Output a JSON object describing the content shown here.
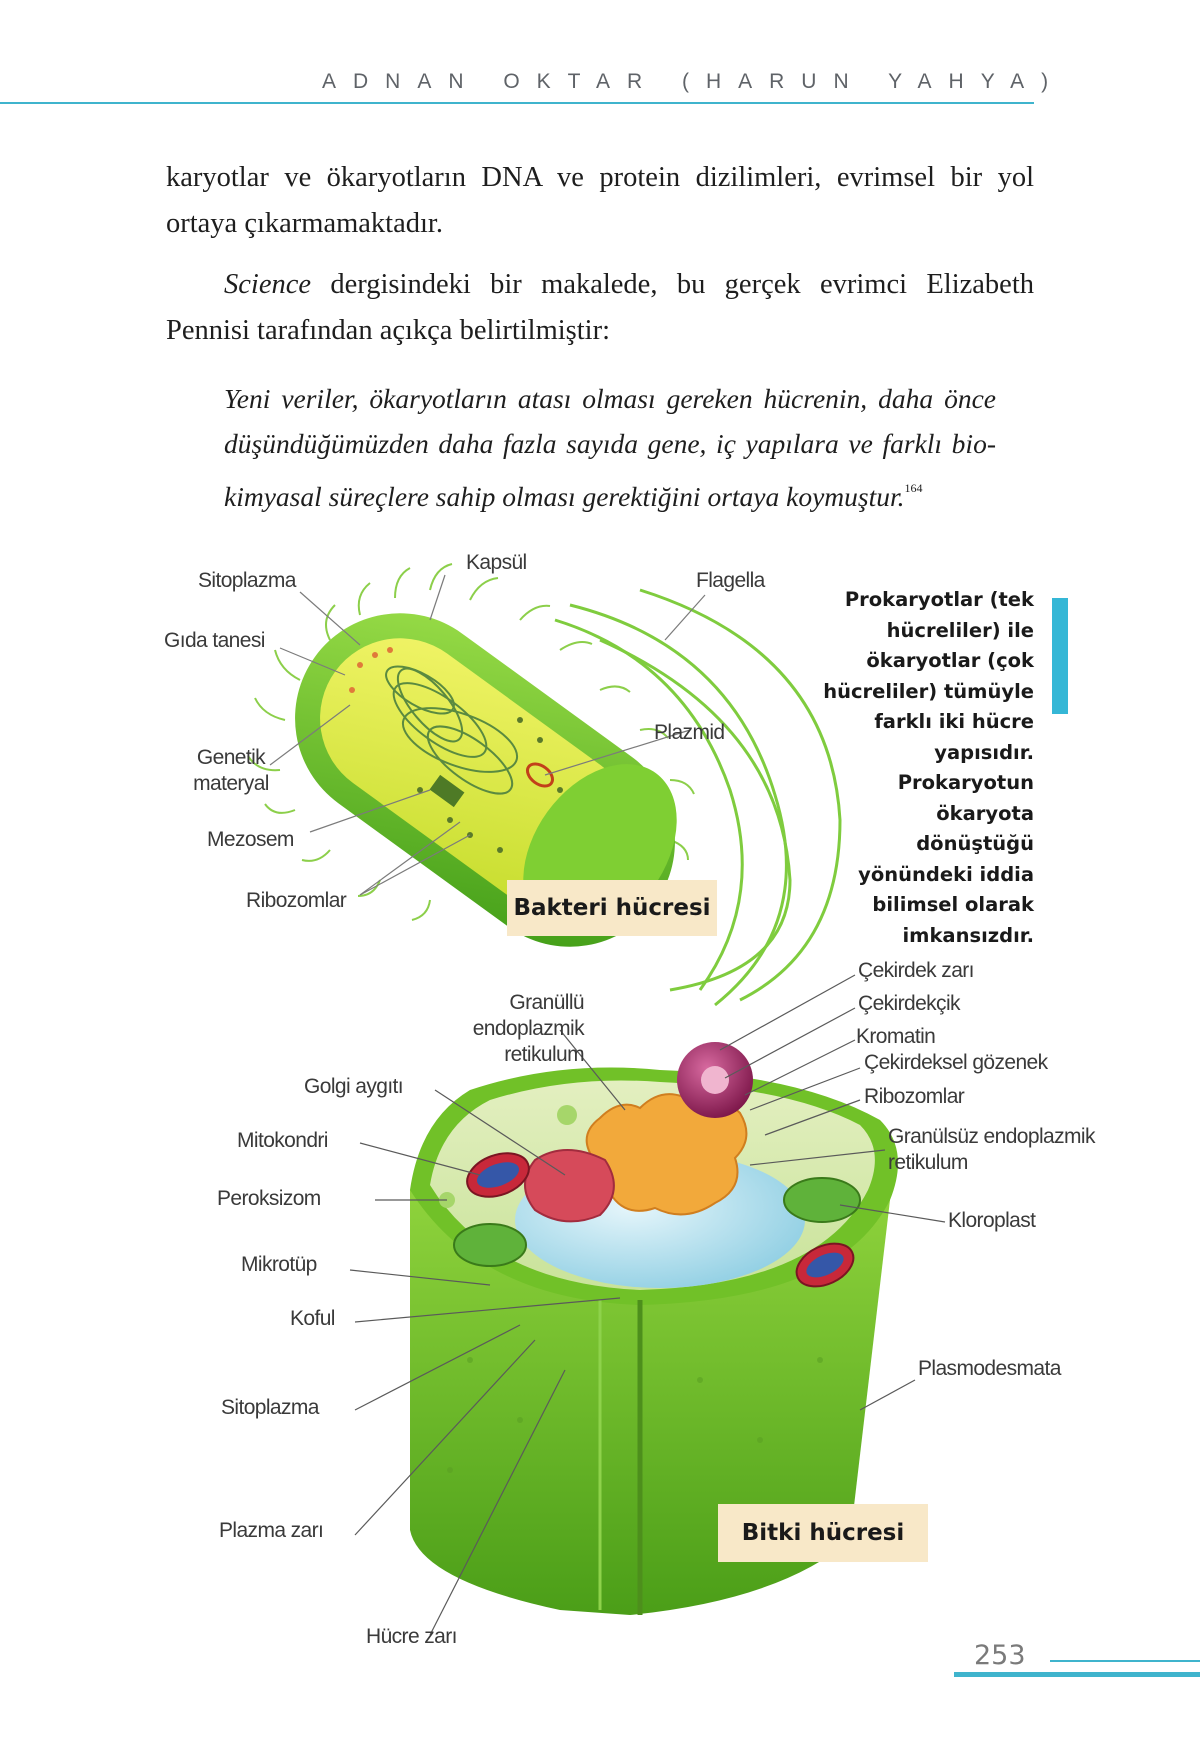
{
  "header": {
    "running_title": "ADNAN OKTAR (HARUN YAHYA)"
  },
  "body": {
    "paragraph1": "karyotlar ve ökaryotların DNA ve protein dizilimleri, evrimsel bir yol ortaya çıkarmamaktadır.",
    "paragraph2_italic": "Science",
    "paragraph2_rest": " dergisindeki bir makalede, bu gerçek evrimci Elizabeth Pennisi tarafından açıkça belirtilmiştir:",
    "quote": "Yeni veriler, ökaryotların atası olması gereken hücrenin, daha önce düşündüğümüzden daha fazla sayıda gene, iç yapılara ve farklı bio-kimyasal süreçlere sahip olması gerektiğini ortaya koymuştur.",
    "quote_ref": "164"
  },
  "sidebar": {
    "text": "Prokaryotlar (tek hücreliler) ile ökaryotlar (çok hücreliler) tümüyle farklı iki hücre yapısıdır. Prokaryotun ökaryota dönüştüğü yönündeki iddia bilimsel olarak imkansızdır."
  },
  "bacteria": {
    "caption": "Bakteri hücresi",
    "labels": {
      "sitoplazma": "Sitoplazma",
      "kapsul": "Kapsül",
      "flagella": "Flagella",
      "gida_tanesi": "Gıda tanesi",
      "plazmid": "Plazmid",
      "genetik_materyal": "Genetik materyal",
      "mezosem": "Mezosem",
      "ribozomlar": "Ribozomlar"
    }
  },
  "plant": {
    "caption": "Bitki hücresi",
    "labels": {
      "granullu_er": "Granüllü endoplazmik retikulum",
      "golgi": "Golgi aygıtı",
      "mitokondri": "Mitokondri",
      "peroksizom": "Peroksizom",
      "mikrotup": "Mikrotüp",
      "koful": "Koful",
      "sitoplazma": "Sitoplazma",
      "plazma_zari": "Plazma zarı",
      "hucre_zari": "Hücre zarı",
      "cekirdek_zari": "Çekirdek zarı",
      "cekirdekcik": "Çekirdekçik",
      "kromatin": "Kromatin",
      "cekirdeksel_gozenek": "Çekirdeksel gözenek",
      "ribozomlar": "Ribozomlar",
      "granulsuz_er": "Granülsüz endoplazmik retikulum",
      "kloroplast": "Kloroplast",
      "plasmodesmata": "Plasmodesmata"
    }
  },
  "footer": {
    "page_number": "253"
  },
  "colors": {
    "accent": "#3fb4cd",
    "sidebar_bar": "#35b7d6",
    "caption_bg": "#f8e8c8",
    "cell_green": "#6cc22e"
  }
}
